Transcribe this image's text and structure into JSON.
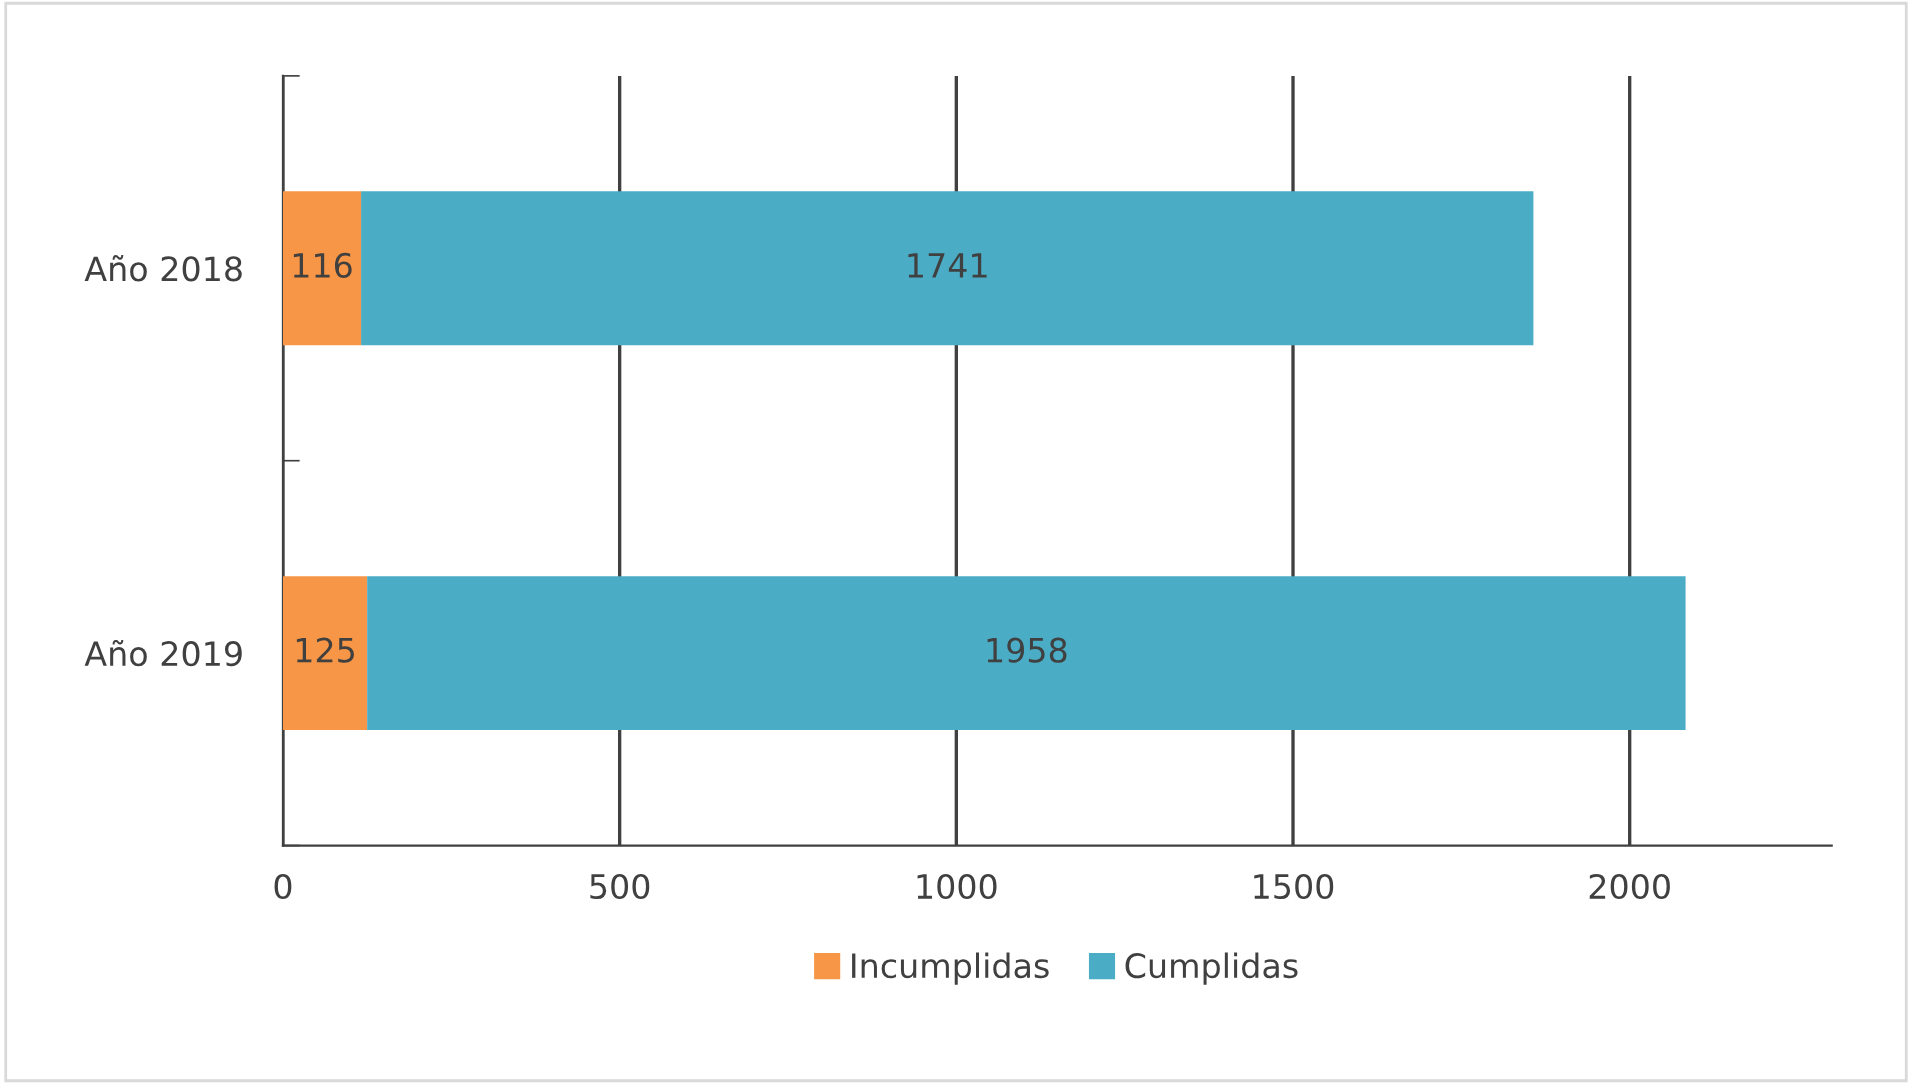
{
  "chart_data": {
    "type": "bar",
    "orientation": "horizontal",
    "stacked": true,
    "categories": [
      "Año 2018",
      "Año 2019"
    ],
    "series": [
      {
        "name": "Incumplidas",
        "color": "#f79646",
        "values": [
          116,
          125
        ]
      },
      {
        "name": "Cumplidas",
        "color": "#4bacc6",
        "values": [
          1741,
          1958
        ]
      }
    ],
    "xlim": [
      0,
      2300
    ],
    "xticks": [
      0,
      500,
      1000,
      1500,
      2000
    ],
    "grid": "x",
    "legend": "bottom",
    "data_labels": true
  }
}
